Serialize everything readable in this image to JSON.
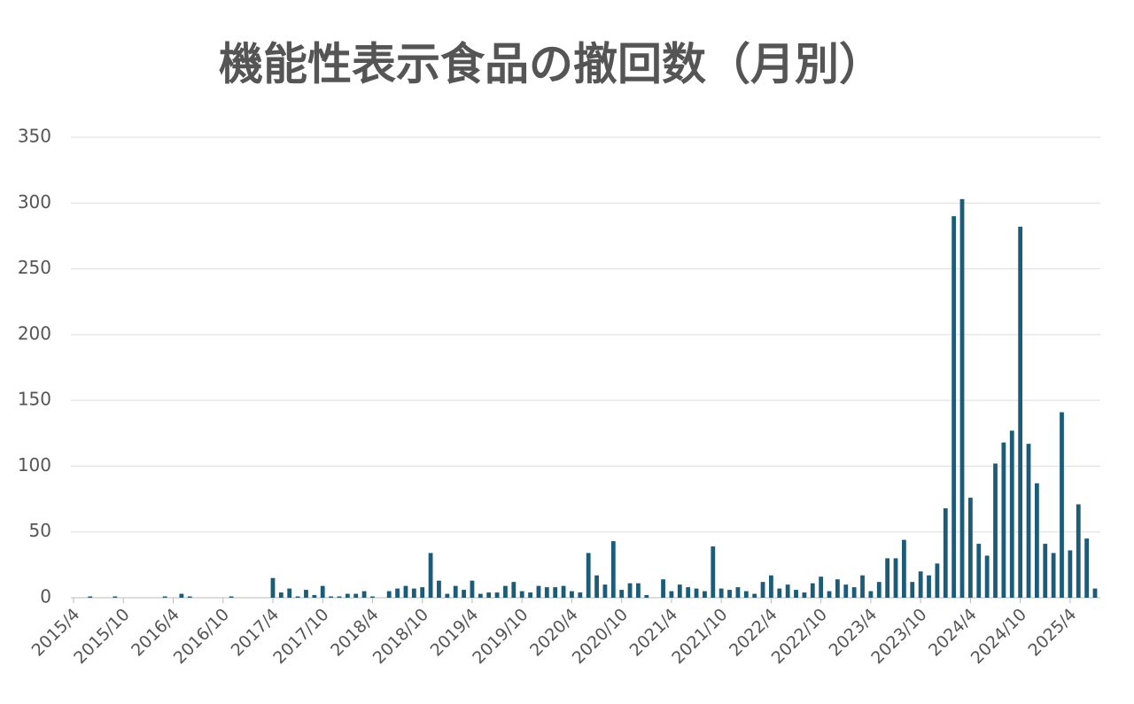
{
  "chart_data": {
    "type": "bar",
    "title": "機能性表示食品の撤回数（月別）",
    "categories": [
      "2015/4",
      null,
      null,
      null,
      null,
      null,
      "2015/10",
      null,
      null,
      null,
      null,
      null,
      "2016/4",
      null,
      null,
      null,
      null,
      null,
      "2016/10",
      null,
      null,
      null,
      null,
      null,
      "2017/4",
      null,
      null,
      null,
      null,
      null,
      "2017/10",
      null,
      null,
      null,
      null,
      null,
      "2018/4",
      null,
      null,
      null,
      null,
      null,
      "2018/10",
      null,
      null,
      null,
      null,
      null,
      "2019/4",
      null,
      null,
      null,
      null,
      null,
      "2019/10",
      null,
      null,
      null,
      null,
      null,
      "2020/4",
      null,
      null,
      null,
      null,
      null,
      "2020/10",
      null,
      null,
      null,
      null,
      null,
      "2021/4",
      null,
      null,
      null,
      null,
      null,
      "2021/10",
      null,
      null,
      null,
      null,
      null,
      "2022/4",
      null,
      null,
      null,
      null,
      null,
      "2022/10",
      null,
      null,
      null,
      null,
      null,
      "2023/4",
      null,
      null,
      null,
      null,
      null,
      "2023/10",
      null,
      null,
      null,
      null,
      null,
      "2024/4",
      null,
      null,
      null,
      null,
      null,
      "2024/10",
      null,
      null,
      null,
      null,
      null,
      "2025/4",
      null,
      null,
      null
    ],
    "values": [
      0,
      0,
      1,
      0,
      0,
      1,
      0,
      0,
      0,
      0,
      0,
      1,
      0,
      3,
      1,
      0,
      0,
      0,
      0,
      1,
      0,
      0,
      0,
      0,
      15,
      4,
      7,
      1,
      6,
      2,
      9,
      1,
      1,
      3,
      3,
      5,
      1,
      0,
      5,
      7,
      9,
      7,
      8,
      34,
      13,
      3,
      9,
      6,
      13,
      3,
      4,
      4,
      9,
      12,
      5,
      4,
      9,
      8,
      8,
      9,
      5,
      4,
      34,
      17,
      10,
      43,
      6,
      11,
      11,
      2,
      0,
      14,
      5,
      10,
      8,
      7,
      5,
      39,
      7,
      6,
      8,
      5,
      3,
      12,
      17,
      7,
      10,
      6,
      4,
      11,
      16,
      5,
      14,
      10,
      8,
      17,
      5,
      12,
      30,
      30,
      44,
      12,
      20,
      17,
      26,
      68,
      290,
      303,
      76,
      41,
      32,
      102,
      118,
      127,
      282,
      117,
      87,
      41,
      34,
      141,
      36,
      71,
      45,
      7
    ],
    "color": "#1d5c78",
    "ylim": [
      0,
      350
    ],
    "yticks": [
      0,
      50,
      100,
      150,
      200,
      250,
      300,
      350
    ],
    "grid": true
  }
}
